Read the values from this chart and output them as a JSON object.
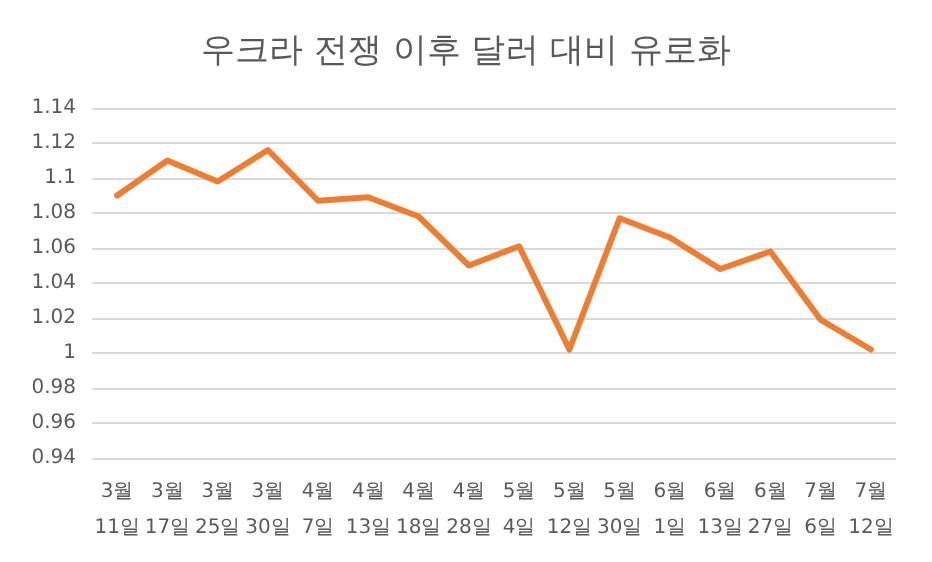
{
  "chart_data": {
    "type": "line",
    "title": "우크라 전쟁 이후 달러 대비 유로화",
    "categories": [
      "3월 11일",
      "3월 17일",
      "3월 25일",
      "3월 30일",
      "4월 7일",
      "4월 13일",
      "4월 18일",
      "4월 28일",
      "5월 4일",
      "5월 12일",
      "5월 30일",
      "6월 1일",
      "6월 13일",
      "6월 27일",
      "7월 6일",
      "7월 12일"
    ],
    "series": [
      {
        "color": "#ed7d31",
        "values": [
          1.09,
          1.11,
          1.098,
          1.116,
          1.087,
          1.089,
          1.078,
          1.05,
          1.061,
          1.002,
          1.077,
          1.066,
          1.048,
          1.058,
          1.019,
          1.002
        ]
      }
    ],
    "ylim": [
      0.94,
      1.14
    ],
    "yticks": [
      0.94,
      0.96,
      0.98,
      1,
      1.02,
      1.04,
      1.06,
      1.08,
      1.1,
      1.12,
      1.14
    ],
    "grid": "y",
    "marker": "none",
    "line_style": "solid"
  }
}
